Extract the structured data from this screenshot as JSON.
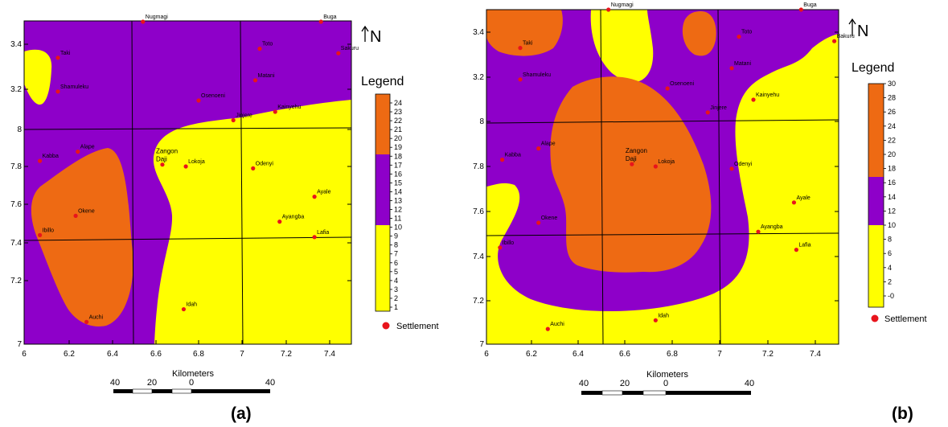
{
  "colors": {
    "yellow": "#ffff00",
    "purple": "#8e00c9",
    "orange": "#ee6a13",
    "settlement": "#e8141c",
    "text": "#000000"
  },
  "panels": [
    {
      "label": "(a)",
      "x_ticks": [
        "6",
        "6.2",
        "6.4",
        "6.6",
        "6.8",
        "7",
        "7.2",
        "7.4"
      ],
      "y_ticks": [
        "3.4",
        "3.2",
        "8",
        "7.8",
        "7.6",
        "7.4",
        "7.2",
        "7"
      ],
      "north": "N",
      "legend": {
        "title": "Legend",
        "classes": [
          {
            "range": "0-10",
            "color": "#ffff00"
          },
          {
            "range": "10-18",
            "color": "#8e00c9"
          },
          {
            "range": "18-24",
            "color": "#ee6a13"
          }
        ],
        "ticks": [
          "24",
          "23",
          "22",
          "21",
          "20",
          "19",
          "18",
          "17",
          "16",
          "15",
          "14",
          "13",
          "12",
          "11",
          "10",
          "9",
          "8",
          "7",
          "6",
          "5",
          "4",
          "3",
          "2",
          "1"
        ],
        "settlement_label": "Settlement"
      },
      "scalebar": {
        "title": "Kilometers",
        "labels": [
          "40",
          "20",
          "0",
          "40"
        ]
      },
      "settlements": [
        {
          "name": "Nugmagi",
          "lon": 6.54,
          "lat": 3.5
        },
        {
          "name": "Toto",
          "lon": 7.08,
          "lat": 3.38
        },
        {
          "name": "Buga",
          "lon": 7.36,
          "lat": 3.5
        },
        {
          "name": "Sakuru",
          "lon": 7.44,
          "lat": 3.36
        },
        {
          "name": "Taki",
          "lon": 6.15,
          "lat": 3.34
        },
        {
          "name": "Matani",
          "lon": 7.06,
          "lat": 3.24
        },
        {
          "name": "Shamuleku",
          "lon": 6.15,
          "lat": 3.19
        },
        {
          "name": "Osenoeni",
          "lon": 6.8,
          "lat": 3.15
        },
        {
          "name": "Kainyehu",
          "lon": 7.15,
          "lat": 3.1
        },
        {
          "name": "Jinjere",
          "lon": 6.96,
          "lat": 8.05
        },
        {
          "name": "Alape",
          "lon": 6.24,
          "lat": 7.88
        },
        {
          "name": "Kabba",
          "lon": 6.07,
          "lat": 7.83
        },
        {
          "name": "Zangon Daji",
          "lon": 6.63,
          "lat": 7.81
        },
        {
          "name": "Lokoja",
          "lon": 6.74,
          "lat": 7.8
        },
        {
          "name": "Odenyi",
          "lon": 7.05,
          "lat": 7.79
        },
        {
          "name": "Ayale",
          "lon": 7.33,
          "lat": 7.64
        },
        {
          "name": "Okene",
          "lon": 6.23,
          "lat": 7.54
        },
        {
          "name": "Ayangba",
          "lon": 7.17,
          "lat": 7.51
        },
        {
          "name": "Lafia",
          "lon": 7.33,
          "lat": 7.43
        },
        {
          "name": "Ibillo",
          "lon": 6.07,
          "lat": 7.44
        },
        {
          "name": "Idah",
          "lon": 6.73,
          "lat": 7.11
        },
        {
          "name": "Auchi",
          "lon": 6.28,
          "lat": 7.07
        }
      ]
    },
    {
      "label": "(b)",
      "x_ticks": [
        "6",
        "6.2",
        "6.4",
        "6.6",
        "6.8",
        "7",
        "7.2",
        "7.4"
      ],
      "y_ticks": [
        "3.4",
        "3.2",
        "8",
        "7.8",
        "7.6",
        "7.4",
        "7.2",
        "7"
      ],
      "north": "N",
      "legend": {
        "title": "Legend",
        "classes": [
          {
            "range": "0-10",
            "color": "#ffff00"
          },
          {
            "range": "10-20",
            "color": "#8e00c9"
          },
          {
            "range": "20-30",
            "color": "#ee6a13"
          }
        ],
        "ticks": [
          "30",
          "28",
          "26",
          "24",
          "22",
          "20",
          "18",
          "16",
          "14",
          "12",
          "10",
          "8",
          "6",
          "4",
          "2",
          "-0"
        ],
        "settlement_label": "Settlement"
      },
      "scalebar": {
        "title": "Kilometers",
        "labels": [
          "40",
          "20",
          "0",
          "40"
        ]
      },
      "settlements": [
        {
          "name": "Nugmagi",
          "lon": 6.53,
          "lat": 3.5
        },
        {
          "name": "Buga",
          "lon": 7.34,
          "lat": 3.5
        },
        {
          "name": "Toto",
          "lon": 7.08,
          "lat": 3.38
        },
        {
          "name": "Bakuru",
          "lon": 7.48,
          "lat": 3.36
        },
        {
          "name": "Taki",
          "lon": 6.15,
          "lat": 3.33
        },
        {
          "name": "Matani",
          "lon": 7.05,
          "lat": 3.24
        },
        {
          "name": "Shamuleku",
          "lon": 6.15,
          "lat": 3.19
        },
        {
          "name": "Osenoeni",
          "lon": 6.78,
          "lat": 3.15
        },
        {
          "name": "Kainyehu",
          "lon": 7.14,
          "lat": 3.1
        },
        {
          "name": "Jinjere",
          "lon": 6.95,
          "lat": 8.04
        },
        {
          "name": "Alape",
          "lon": 6.23,
          "lat": 7.88
        },
        {
          "name": "Kabba",
          "lon": 6.07,
          "lat": 7.83
        },
        {
          "name": "Zangon Daji",
          "lon": 6.63,
          "lat": 7.81
        },
        {
          "name": "Lokoja",
          "lon": 6.73,
          "lat": 7.8
        },
        {
          "name": "Odenyi",
          "lon": 7.05,
          "lat": 7.79
        },
        {
          "name": "Ayale",
          "lon": 7.31,
          "lat": 7.64
        },
        {
          "name": "Okene",
          "lon": 6.23,
          "lat": 7.55
        },
        {
          "name": "Ayangba",
          "lon": 7.16,
          "lat": 7.51
        },
        {
          "name": "Lafia",
          "lon": 7.32,
          "lat": 7.43
        },
        {
          "name": "Ibillo",
          "lon": 6.06,
          "lat": 7.44
        },
        {
          "name": "Idah",
          "lon": 6.73,
          "lat": 7.11
        },
        {
          "name": "Auchi",
          "lon": 6.27,
          "lat": 7.07
        }
      ]
    }
  ]
}
